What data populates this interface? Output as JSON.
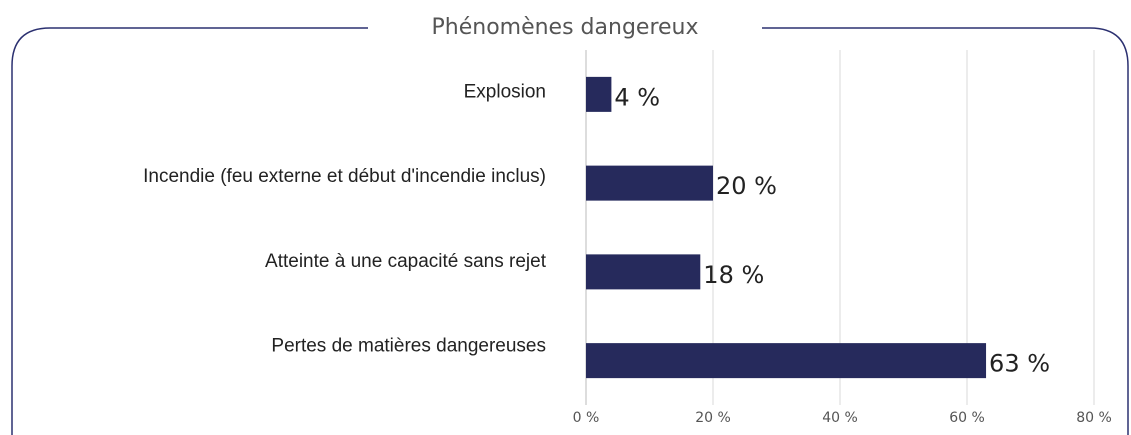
{
  "chart_data": {
    "type": "bar",
    "orientation": "horizontal",
    "title": "Phénomènes dangereux",
    "categories": [
      "Explosion",
      "Incendie (feu externe et début d'incendie inclus)",
      "Atteinte à une capacité sans rejet",
      "Pertes de matières dangereuses"
    ],
    "values": [
      4,
      20,
      18,
      63
    ],
    "value_labels": [
      "4 %",
      "20 %",
      "18 %",
      "63 %"
    ],
    "color": "#262a5c",
    "xlim": [
      0,
      80
    ],
    "xticks": [
      {
        "value": 0,
        "label": "0 %"
      },
      {
        "value": 20,
        "label": "20 %"
      },
      {
        "value": 40,
        "label": "40 %"
      },
      {
        "value": 60,
        "label": "60 %"
      },
      {
        "value": 80,
        "label": "80 %"
      }
    ],
    "grid": true
  }
}
